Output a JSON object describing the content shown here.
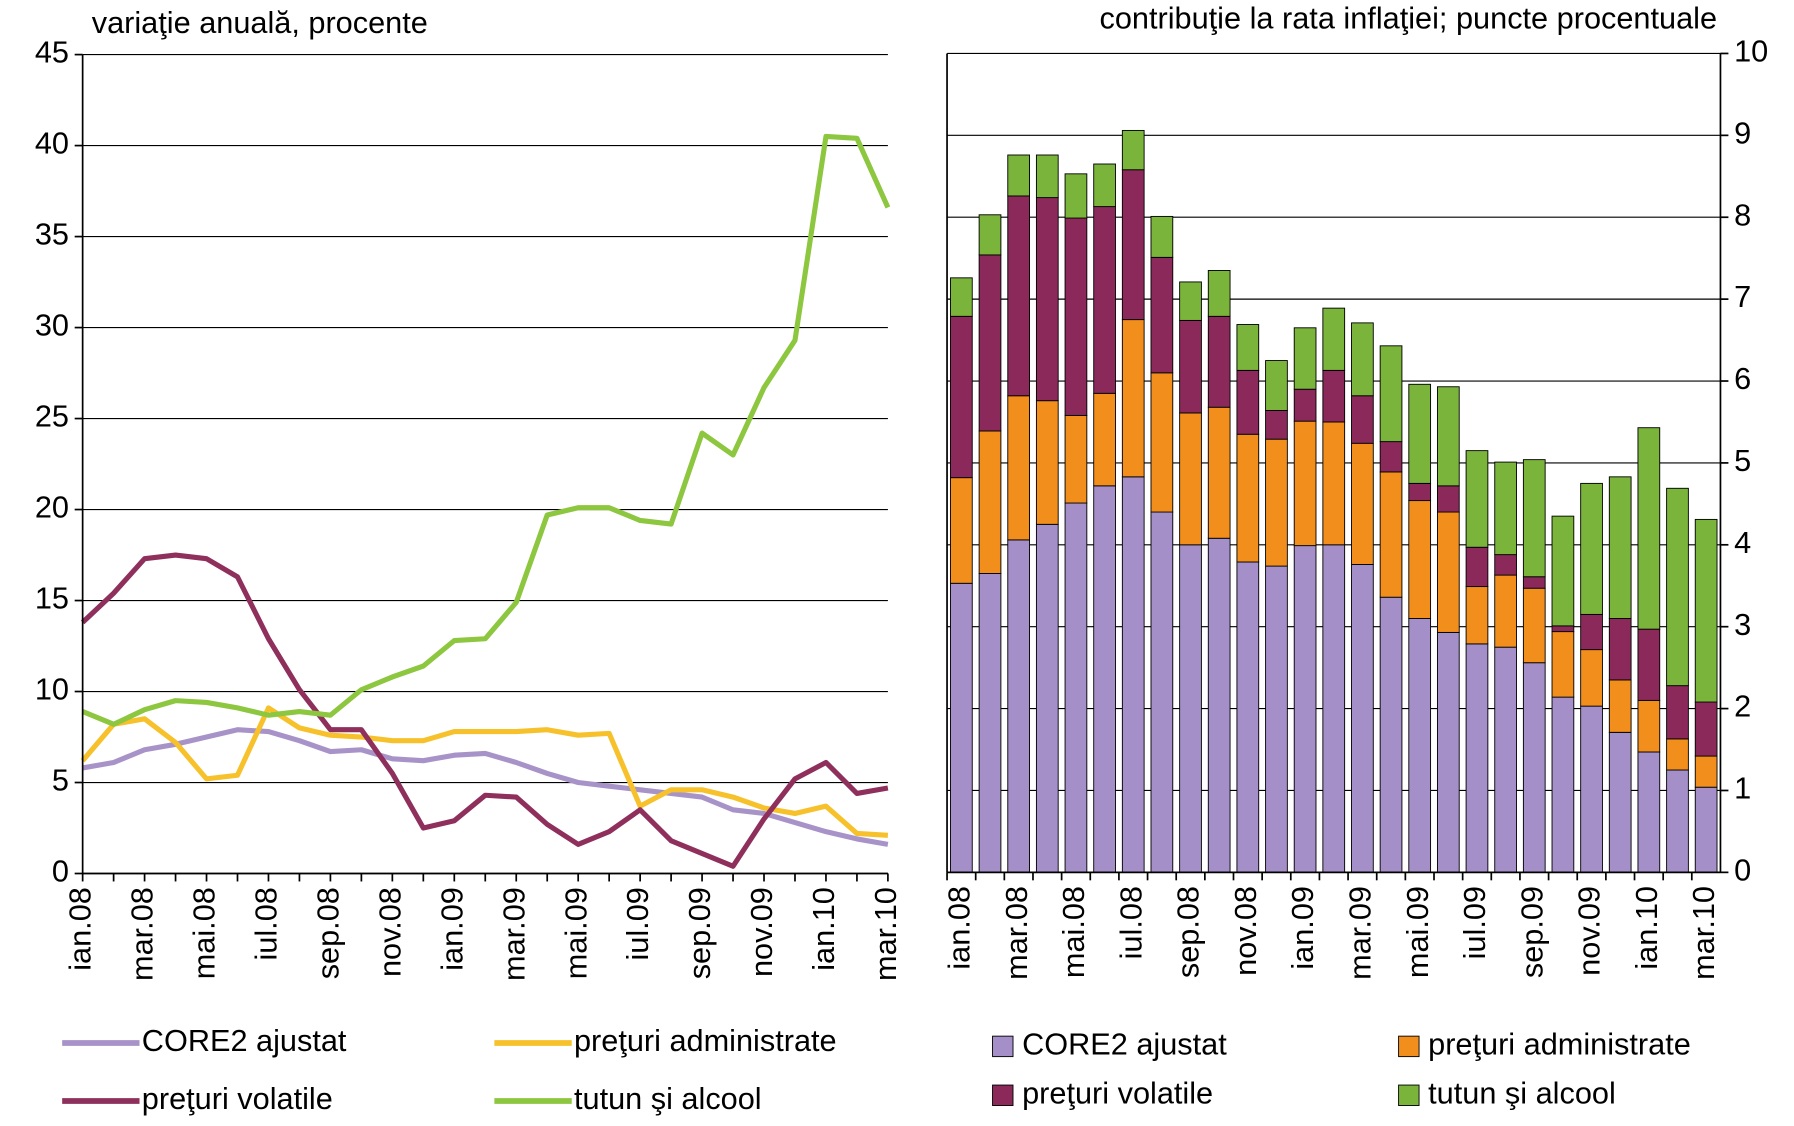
{
  "chart_data": [
    {
      "type": "line",
      "title": "variaţie anuală, procente",
      "categories": [
        "ian.08",
        null,
        "mar.08",
        null,
        "mai.08",
        null,
        "iul.08",
        null,
        "sep.08",
        null,
        "nov.08",
        null,
        "ian.09",
        null,
        "mar.09",
        null,
        "mai.09",
        null,
        "iul.09",
        null,
        "sep.09",
        null,
        "nov.09",
        null,
        "ian.10",
        null,
        "mar.10"
      ],
      "series": [
        {
          "name": "CORE2 ajustat",
          "color": "#a893c9",
          "values": [
            5.8,
            6.1,
            6.8,
            7.1,
            7.5,
            7.9,
            7.8,
            7.3,
            6.7,
            6.8,
            6.3,
            6.2,
            6.5,
            6.6,
            6.1,
            5.5,
            5.0,
            4.8,
            4.6,
            4.4,
            4.2,
            3.5,
            3.3,
            2.8,
            2.3,
            1.9,
            1.6
          ]
        },
        {
          "name": "preţuri administrate",
          "color": "#f7c12c",
          "values": [
            6.2,
            8.2,
            8.5,
            7.2,
            5.2,
            5.4,
            9.1,
            8.0,
            7.6,
            7.5,
            7.3,
            7.3,
            7.8,
            7.8,
            7.8,
            7.9,
            7.6,
            7.7,
            3.7,
            4.6,
            4.6,
            4.2,
            3.6,
            3.3,
            3.7,
            2.2,
            2.1
          ]
        },
        {
          "name": "preţuri volatile",
          "color": "#8e2f5c",
          "values": [
            13.8,
            15.4,
            17.3,
            17.5,
            17.3,
            16.3,
            12.9,
            10.1,
            7.9,
            7.9,
            5.5,
            2.5,
            2.9,
            4.3,
            4.2,
            2.7,
            1.6,
            2.3,
            3.5,
            1.8,
            1.1,
            0.4,
            3.0,
            5.2,
            6.1,
            4.4,
            4.7
          ]
        },
        {
          "name": "tutun şi alcool",
          "color": "#8dc63f",
          "values": [
            8.9,
            8.2,
            9.0,
            9.5,
            9.4,
            9.1,
            8.7,
            8.9,
            8.7,
            10.1,
            10.8,
            11.4,
            12.8,
            12.9,
            14.9,
            19.7,
            20.1,
            20.1,
            19.4,
            19.2,
            24.2,
            23.0,
            26.7,
            29.3,
            40.5,
            40.4,
            36.6
          ]
        }
      ],
      "ylim": [
        0,
        45
      ],
      "yticks": [
        0,
        5,
        10,
        15,
        20,
        25,
        30,
        35,
        40,
        45
      ],
      "grid": true,
      "y_axis_side": "left"
    },
    {
      "type": "stacked_bar",
      "title": "contribuţie la rata inflaţiei; puncte procentuale",
      "categories": [
        "ian.08",
        null,
        "mar.08",
        null,
        "mai.08",
        null,
        "iul.08",
        null,
        "sep.08",
        null,
        "nov.08",
        null,
        "ian.09",
        null,
        "mar.09",
        null,
        "mai.09",
        null,
        "iul.09",
        null,
        "sep.09",
        null,
        "nov.09",
        null,
        "ian.10",
        null,
        "mar.10"
      ],
      "series": [
        {
          "name": "CORE2 ajustat",
          "color": "#a48fc9",
          "values": [
            3.53,
            3.65,
            4.06,
            4.25,
            4.51,
            4.72,
            4.83,
            4.4,
            4.0,
            4.08,
            3.79,
            3.74,
            3.99,
            4.0,
            3.76,
            3.36,
            3.1,
            2.93,
            2.79,
            2.75,
            2.56,
            2.14,
            2.03,
            1.71,
            1.47,
            1.25,
            1.04
          ]
        },
        {
          "name": "preţuri administrate",
          "color": "#f28e1c",
          "values": [
            1.29,
            1.74,
            1.76,
            1.51,
            1.07,
            1.13,
            1.92,
            1.7,
            1.61,
            1.6,
            1.56,
            1.55,
            1.52,
            1.5,
            1.48,
            1.53,
            1.44,
            1.47,
            0.7,
            0.88,
            0.91,
            0.8,
            0.69,
            0.64,
            0.63,
            0.38,
            0.38
          ]
        },
        {
          "name": "preţuri volatile",
          "color": "#8b2a5a",
          "values": [
            1.97,
            2.15,
            2.44,
            2.48,
            2.41,
            2.28,
            1.83,
            1.41,
            1.13,
            1.11,
            0.78,
            0.35,
            0.39,
            0.63,
            0.58,
            0.37,
            0.21,
            0.32,
            0.48,
            0.25,
            0.14,
            0.07,
            0.43,
            0.75,
            0.87,
            0.65,
            0.66
          ]
        },
        {
          "name": "tutun şi alcool",
          "color": "#7ab43a",
          "values": [
            0.47,
            0.49,
            0.5,
            0.52,
            0.54,
            0.52,
            0.48,
            0.5,
            0.47,
            0.56,
            0.56,
            0.61,
            0.75,
            0.76,
            0.89,
            1.17,
            1.21,
            1.21,
            1.18,
            1.13,
            1.43,
            1.34,
            1.6,
            1.73,
            2.46,
            2.41,
            2.23
          ]
        }
      ],
      "ylim": [
        0,
        10
      ],
      "yticks": [
        0,
        1,
        2,
        3,
        4,
        5,
        6,
        7,
        8,
        9,
        10
      ],
      "grid": true,
      "y_axis_side": "right"
    }
  ]
}
